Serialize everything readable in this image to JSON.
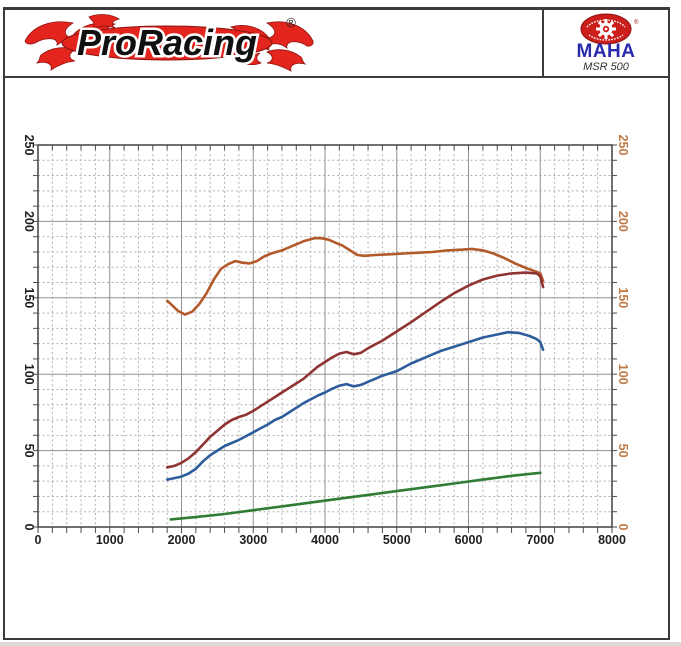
{
  "header": {
    "brand": "ProRacing",
    "brand_reg": "®",
    "device_brand": "MAHA",
    "device_reg": "®",
    "device_model": "MSR 500"
  },
  "colors": {
    "frame": "#4d4d4d",
    "grid_major": "#909090",
    "grid_minor": "#b0b0b0",
    "axis_text": "#1f1f1f",
    "axis_text_right": "#c07a45",
    "brand_red": "#e3251d",
    "maha_blue": "#2a2aad",
    "background": "#ffffff"
  },
  "chart_data": {
    "type": "line",
    "title": "",
    "xlabel": "",
    "ylabel": "",
    "xlim": [
      0,
      8000
    ],
    "ylim": [
      0,
      250
    ],
    "x_major_step": 1000,
    "x_minor_step": 200,
    "y_major_step": 50,
    "y_minor_step": 10,
    "grid": true,
    "legend": false,
    "x_tick_labels": [
      "0",
      "1000",
      "2000",
      "3000",
      "4000",
      "5000",
      "6000",
      "7000",
      "8000"
    ],
    "y_tick_labels_left": [
      "0",
      "50",
      "100",
      "150",
      "200",
      "250"
    ],
    "y_tick_labels_right": [
      "0",
      "50",
      "100",
      "150",
      "200",
      "250"
    ],
    "series": [
      {
        "name": "orange",
        "color": "#b35a2a",
        "points": [
          [
            1800,
            148
          ],
          [
            1850,
            146
          ],
          [
            1950,
            141.5
          ],
          [
            2050,
            139
          ],
          [
            2150,
            141
          ],
          [
            2250,
            146
          ],
          [
            2350,
            153
          ],
          [
            2450,
            162
          ],
          [
            2550,
            169
          ],
          [
            2650,
            172
          ],
          [
            2750,
            174
          ],
          [
            2850,
            173
          ],
          [
            2950,
            172.5
          ],
          [
            3050,
            174
          ],
          [
            3150,
            177
          ],
          [
            3250,
            179
          ],
          [
            3400,
            181
          ],
          [
            3550,
            184
          ],
          [
            3700,
            187
          ],
          [
            3850,
            189
          ],
          [
            3950,
            189
          ],
          [
            4050,
            188
          ],
          [
            4150,
            186
          ],
          [
            4250,
            184
          ],
          [
            4350,
            181
          ],
          [
            4450,
            178
          ],
          [
            4550,
            177.5
          ],
          [
            4700,
            178
          ],
          [
            4900,
            178.5
          ],
          [
            5100,
            179
          ],
          [
            5300,
            179.5
          ],
          [
            5500,
            180
          ],
          [
            5700,
            181
          ],
          [
            5900,
            181.5
          ],
          [
            6050,
            182
          ],
          [
            6200,
            181
          ],
          [
            6350,
            179
          ],
          [
            6500,
            176
          ],
          [
            6650,
            172.5
          ],
          [
            6800,
            169.5
          ],
          [
            6950,
            167
          ],
          [
            7000,
            166
          ],
          [
            7040,
            161
          ]
        ]
      },
      {
        "name": "dark-red",
        "color": "#8f3433",
        "points": [
          [
            1800,
            39
          ],
          [
            1900,
            40
          ],
          [
            2000,
            42
          ],
          [
            2100,
            45
          ],
          [
            2200,
            49
          ],
          [
            2300,
            54
          ],
          [
            2400,
            59
          ],
          [
            2500,
            63
          ],
          [
            2600,
            67
          ],
          [
            2700,
            70
          ],
          [
            2800,
            72
          ],
          [
            2900,
            73.5
          ],
          [
            3000,
            76
          ],
          [
            3100,
            79
          ],
          [
            3200,
            82
          ],
          [
            3300,
            85
          ],
          [
            3400,
            88
          ],
          [
            3500,
            91
          ],
          [
            3600,
            94
          ],
          [
            3700,
            97
          ],
          [
            3800,
            101
          ],
          [
            3900,
            105
          ],
          [
            4000,
            108
          ],
          [
            4100,
            111
          ],
          [
            4200,
            113.5
          ],
          [
            4300,
            114.5
          ],
          [
            4400,
            113
          ],
          [
            4500,
            114
          ],
          [
            4600,
            117
          ],
          [
            4800,
            122
          ],
          [
            5000,
            128
          ],
          [
            5200,
            134
          ],
          [
            5400,
            140.5
          ],
          [
            5600,
            147
          ],
          [
            5800,
            153
          ],
          [
            6000,
            158
          ],
          [
            6200,
            162
          ],
          [
            6400,
            164.5
          ],
          [
            6600,
            166
          ],
          [
            6800,
            166.5
          ],
          [
            6950,
            166
          ],
          [
            7000,
            164
          ],
          [
            7040,
            157
          ]
        ]
      },
      {
        "name": "blue",
        "color": "#2e5d9c",
        "points": [
          [
            1800,
            31
          ],
          [
            1900,
            32
          ],
          [
            2000,
            33
          ],
          [
            2100,
            35
          ],
          [
            2200,
            38
          ],
          [
            2300,
            43
          ],
          [
            2400,
            47
          ],
          [
            2500,
            50
          ],
          [
            2600,
            53
          ],
          [
            2700,
            55
          ],
          [
            2800,
            57
          ],
          [
            2900,
            59.5
          ],
          [
            3000,
            62
          ],
          [
            3100,
            64.5
          ],
          [
            3200,
            67
          ],
          [
            3300,
            70
          ],
          [
            3400,
            72
          ],
          [
            3500,
            75
          ],
          [
            3600,
            78
          ],
          [
            3700,
            81
          ],
          [
            3800,
            83.5
          ],
          [
            3900,
            86
          ],
          [
            4000,
            88
          ],
          [
            4100,
            90.5
          ],
          [
            4200,
            92.5
          ],
          [
            4300,
            93.5
          ],
          [
            4400,
            92
          ],
          [
            4500,
            93
          ],
          [
            4600,
            95
          ],
          [
            4700,
            97
          ],
          [
            4800,
            99
          ],
          [
            5000,
            102
          ],
          [
            5200,
            107
          ],
          [
            5400,
            111
          ],
          [
            5600,
            115
          ],
          [
            5800,
            118
          ],
          [
            6000,
            121
          ],
          [
            6200,
            124
          ],
          [
            6400,
            126
          ],
          [
            6550,
            127.5
          ],
          [
            6700,
            127
          ],
          [
            6850,
            125
          ],
          [
            6950,
            123
          ],
          [
            7000,
            121
          ],
          [
            7040,
            116
          ]
        ]
      },
      {
        "name": "green",
        "color": "#2f7d35",
        "points": [
          [
            1850,
            5
          ],
          [
            2200,
            6.5
          ],
          [
            2600,
            8.5
          ],
          [
            3000,
            11
          ],
          [
            3400,
            13.5
          ],
          [
            3800,
            16
          ],
          [
            4200,
            18.5
          ],
          [
            4600,
            21
          ],
          [
            5000,
            23.5
          ],
          [
            5400,
            26
          ],
          [
            5800,
            28.5
          ],
          [
            6200,
            31
          ],
          [
            6600,
            33.5
          ],
          [
            7000,
            35.5
          ]
        ]
      }
    ]
  }
}
